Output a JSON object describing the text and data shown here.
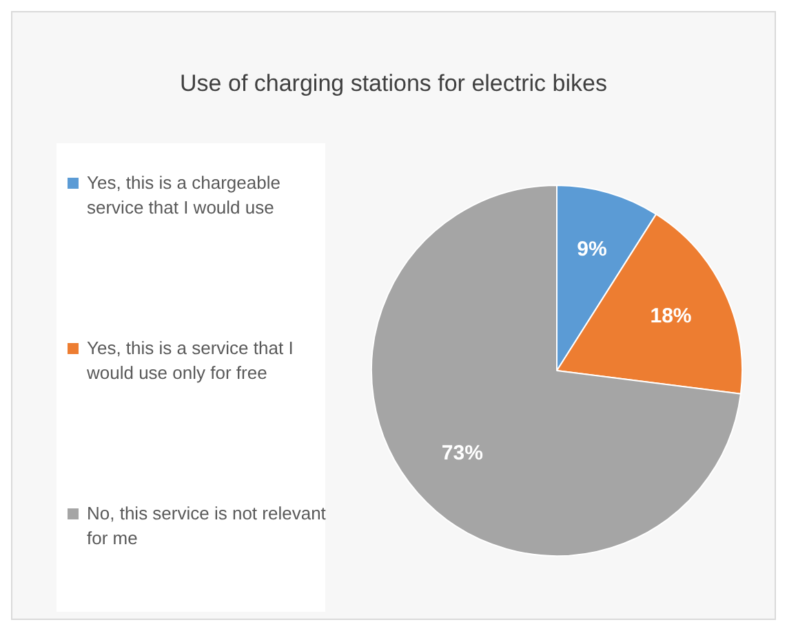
{
  "chart_data": {
    "type": "pie",
    "title": "Use of charging stations for electric bikes",
    "categories": [
      "Yes, this is a chargeable service that I would use",
      "Yes, this is a service that I would use only for free",
      "No, this service is not relevant for me"
    ],
    "values": [
      9,
      18,
      73
    ],
    "colors": [
      "#5b9bd5",
      "#ed7d31",
      "#a5a5a5"
    ],
    "value_labels": [
      "9%",
      "18%",
      "73%"
    ],
    "legend": "left"
  }
}
